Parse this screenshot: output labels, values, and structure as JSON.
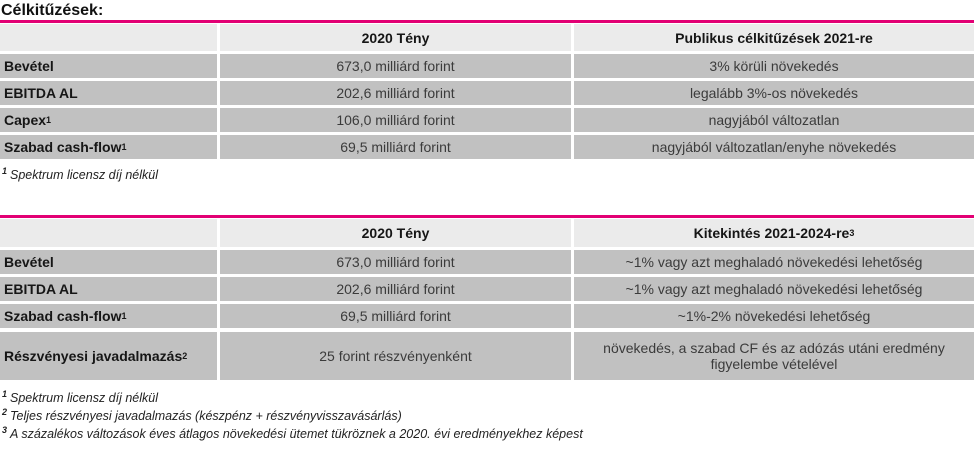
{
  "page": {
    "title": "Célkitűzések:"
  },
  "colors": {
    "accent": "#e20074",
    "header_bg": "#ebebeb",
    "row_bg": "#c1c1c1"
  },
  "table1": {
    "headers": {
      "col1": "",
      "col2": "2020 Tény",
      "col3": "Publikus célkitűzések 2021-re",
      "col3_sup": ""
    },
    "rows": [
      {
        "label": "Bevétel",
        "sup": "",
        "fact": "673,0 milliárd forint",
        "target": "3% körüli növekedés"
      },
      {
        "label": "EBITDA AL",
        "sup": "",
        "fact": "202,6 milliárd forint",
        "target": "legalább 3%-os növekedés"
      },
      {
        "label": "Capex",
        "sup": "1",
        "fact": "106,0 milliárd forint",
        "target": "nagyjából változatlan"
      },
      {
        "label": "Szabad cash-flow",
        "sup": "1",
        "fact": "69,5 milliárd forint",
        "target": "nagyjából változatlan/enyhe növekedés"
      }
    ],
    "footnotes": [
      {
        "marker": "1",
        "text": "Spektrum licensz díj nélkül"
      }
    ]
  },
  "table2": {
    "headers": {
      "col1": "",
      "col2": "2020 Tény",
      "col3": "Kitekintés 2021-2024-re",
      "col3_sup": "3"
    },
    "rows": [
      {
        "label": "Bevétel",
        "sup": "",
        "fact": "673,0 milliárd forint",
        "target": "~1% vagy azt meghaladó növekedési lehetőség"
      },
      {
        "label": "EBITDA AL",
        "sup": "",
        "fact": "202,6 milliárd forint",
        "target": "~1% vagy azt meghaladó növekedési lehetőség"
      },
      {
        "label": "Szabad cash-flow",
        "sup": "1",
        "fact": "69,5 milliárd forint",
        "target": "~1%-2% növekedési lehetőség"
      }
    ],
    "tall_row": {
      "label": "Részvényesi javadalmazás",
      "sup": "2",
      "fact": "25 forint részvényenként",
      "target": "növekedés, a szabad CF és az adózás utáni eredmény figyelembe vételével"
    },
    "footnotes": [
      {
        "marker": "1",
        "text": "Spektrum licensz díj nélkül"
      },
      {
        "marker": "2",
        "text": "Teljes részvényesi javadalmazás (készpénz + részvényvisszavásárlás)"
      },
      {
        "marker": "3",
        "text": "A százalékos változások éves átlagos növekedési ütemet tükröznek a 2020. évi eredményekhez képest"
      }
    ]
  }
}
